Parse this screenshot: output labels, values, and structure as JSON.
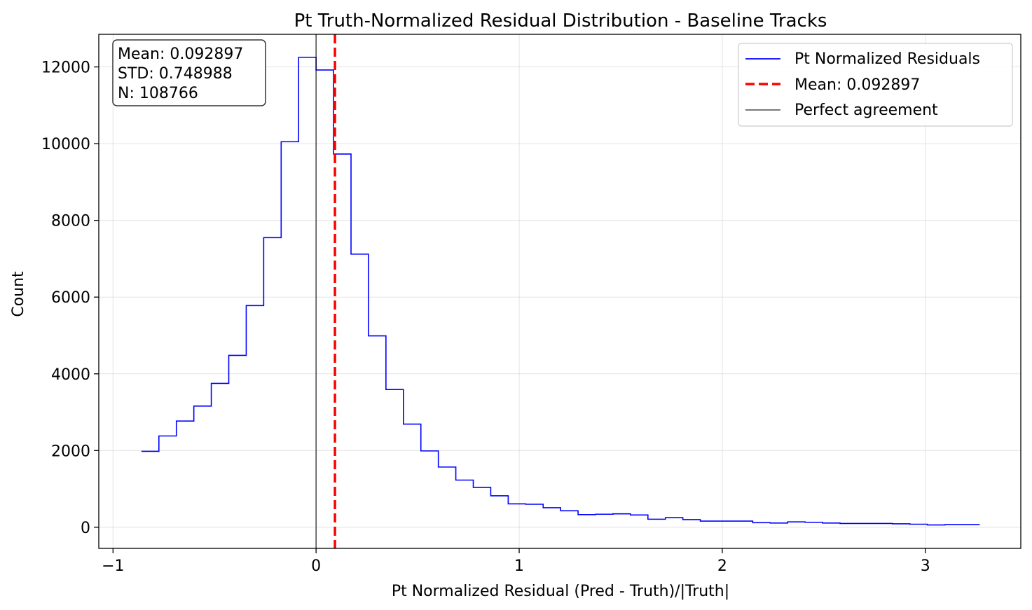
{
  "chart_data": {
    "type": "histogram",
    "title": "Pt Truth-Normalized Residual Distribution - Baseline Tracks",
    "xlabel": "Pt Normalized Residual (Pred - Truth)/|Truth|",
    "ylabel": "Count",
    "xlim": [
      -1.07,
      3.47
    ],
    "ylim": [
      -550,
      12850
    ],
    "xticks": [
      -1,
      0,
      1,
      2,
      3
    ],
    "xtick_labels": [
      "−1",
      "0",
      "1",
      "2",
      "3"
    ],
    "yticks": [
      0,
      2000,
      4000,
      6000,
      8000,
      10000,
      12000
    ],
    "ytick_labels": [
      "0",
      "2000",
      "4000",
      "6000",
      "8000",
      "10000",
      "12000"
    ],
    "grid": true,
    "legend_position": "top-right",
    "series": [
      {
        "name": "Pt Normalized Residuals",
        "color": "#0000ff",
        "style": "step",
        "bin_edges": [
          -0.86,
          -0.774,
          -0.688,
          -0.602,
          -0.516,
          -0.43,
          -0.344,
          -0.258,
          -0.172,
          -0.086,
          0.0,
          0.086,
          0.172,
          0.258,
          0.344,
          0.43,
          0.516,
          0.602,
          0.688,
          0.774,
          0.86,
          0.946,
          1.032,
          1.118,
          1.204,
          1.29,
          1.376,
          1.462,
          1.548,
          1.634,
          1.72,
          1.806,
          1.892,
          1.978,
          2.064,
          2.15,
          2.236,
          2.322,
          2.408,
          2.494,
          2.58,
          2.666,
          2.752,
          2.838,
          2.924,
          3.01,
          3.096,
          3.182,
          3.268
        ],
        "counts": [
          1980,
          2380,
          2770,
          3160,
          3750,
          4480,
          5780,
          7550,
          10050,
          12250,
          11920,
          9730,
          7120,
          4990,
          3590,
          2690,
          1990,
          1570,
          1230,
          1040,
          820,
          610,
          600,
          510,
          430,
          330,
          340,
          350,
          320,
          210,
          250,
          200,
          160,
          160,
          160,
          120,
          110,
          140,
          130,
          110,
          100,
          100,
          100,
          90,
          80,
          60,
          70,
          70
        ]
      },
      {
        "name": "Mean: 0.092897",
        "color": "#ff0000",
        "style": "dashed-vline",
        "x": 0.092897
      },
      {
        "name": "Perfect agreement",
        "color": "#000000",
        "style": "solid-vline",
        "x": 0
      }
    ],
    "stats_box": {
      "lines": [
        "Mean: 0.092897",
        "STD: 0.748988",
        "N: 108766"
      ],
      "position": "top-left"
    }
  }
}
